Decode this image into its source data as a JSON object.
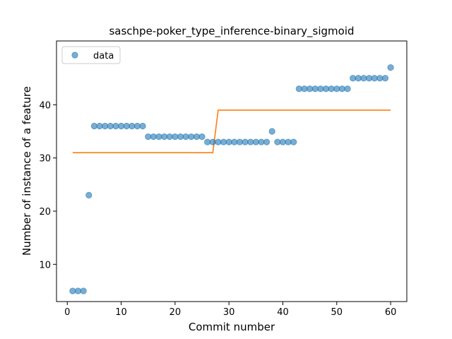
{
  "chart_data": {
    "type": "scatter",
    "title": "saschpe-poker_type_inference-binary_sigmoid",
    "xlabel": "Commit number",
    "ylabel": "Number of instance of a feature",
    "xlim": [
      -2,
      63
    ],
    "ylim": [
      3,
      52
    ],
    "xticks": [
      0,
      10,
      20,
      30,
      40,
      50,
      60
    ],
    "yticks": [
      10,
      20,
      30,
      40
    ],
    "legend": {
      "position": "top-left",
      "entries": [
        "data"
      ]
    },
    "grid": false,
    "series": [
      {
        "name": "data",
        "kind": "scatter",
        "color": "#1f77b4",
        "x": [
          1,
          2,
          3,
          4,
          5,
          6,
          7,
          8,
          9,
          10,
          11,
          12,
          13,
          14,
          15,
          16,
          17,
          18,
          19,
          20,
          21,
          22,
          23,
          24,
          25,
          26,
          27,
          28,
          29,
          30,
          31,
          32,
          33,
          34,
          35,
          36,
          37,
          38,
          39,
          40,
          41,
          42,
          43,
          44,
          45,
          46,
          47,
          48,
          49,
          50,
          51,
          52,
          53,
          54,
          55,
          56,
          57,
          58,
          59,
          60
        ],
        "y": [
          5,
          5,
          5,
          23,
          36,
          36,
          36,
          36,
          36,
          36,
          36,
          36,
          36,
          36,
          34,
          34,
          34,
          34,
          34,
          34,
          34,
          34,
          34,
          34,
          34,
          33,
          33,
          33,
          33,
          33,
          33,
          33,
          33,
          33,
          33,
          33,
          33,
          35,
          33,
          33,
          33,
          33,
          43,
          43,
          43,
          43,
          43,
          43,
          43,
          43,
          43,
          43,
          45,
          45,
          45,
          45,
          45,
          45,
          45,
          47
        ]
      },
      {
        "kind": "step-line",
        "color": "#ff7f0e",
        "x": [
          1,
          27,
          28,
          60
        ],
        "y": [
          31,
          31,
          39,
          39
        ]
      }
    ]
  }
}
